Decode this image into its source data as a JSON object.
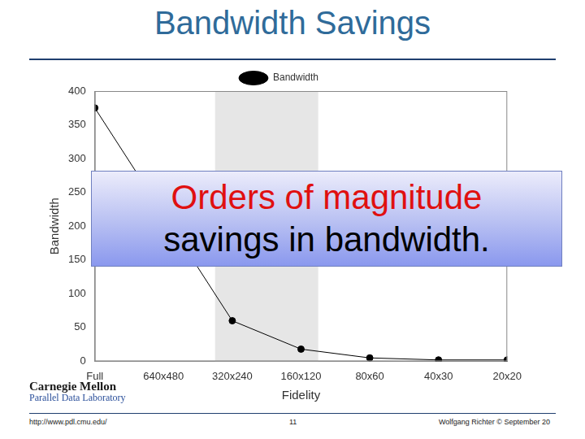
{
  "chart_data": {
    "type": "line",
    "title": "Bandwidth Savings",
    "categories": [
      "Full",
      "640x480",
      "320x240",
      "160x120",
      "80x60",
      "40x30",
      "20x20"
    ],
    "series": [
      {
        "name": "Bandwidth",
        "color": "#000000",
        "marker": "circle",
        "line_style": "solid",
        "values": [
          375,
          null,
          60,
          18,
          5,
          2,
          2
        ]
      }
    ],
    "x_label": "Fidelity",
    "y_label": "Bandwidth",
    "ylim": [
      0,
      400
    ],
    "yticks": [
      0,
      50,
      100,
      150,
      200,
      250,
      300,
      350,
      400
    ],
    "highlight": [
      "320x240",
      "160x120"
    ],
    "grid": false,
    "legend": "top",
    "annotation": [
      "Orders of magnitude",
      "savings in bandwidth."
    ]
  },
  "footer": {
    "logo": [
      "Carnegie Mellon",
      "Parallel Data Laboratory"
    ],
    "url": "http://www.pdl.cmu.edu/",
    "page": "11",
    "credit": "Wolfgang Richter © September 20"
  }
}
